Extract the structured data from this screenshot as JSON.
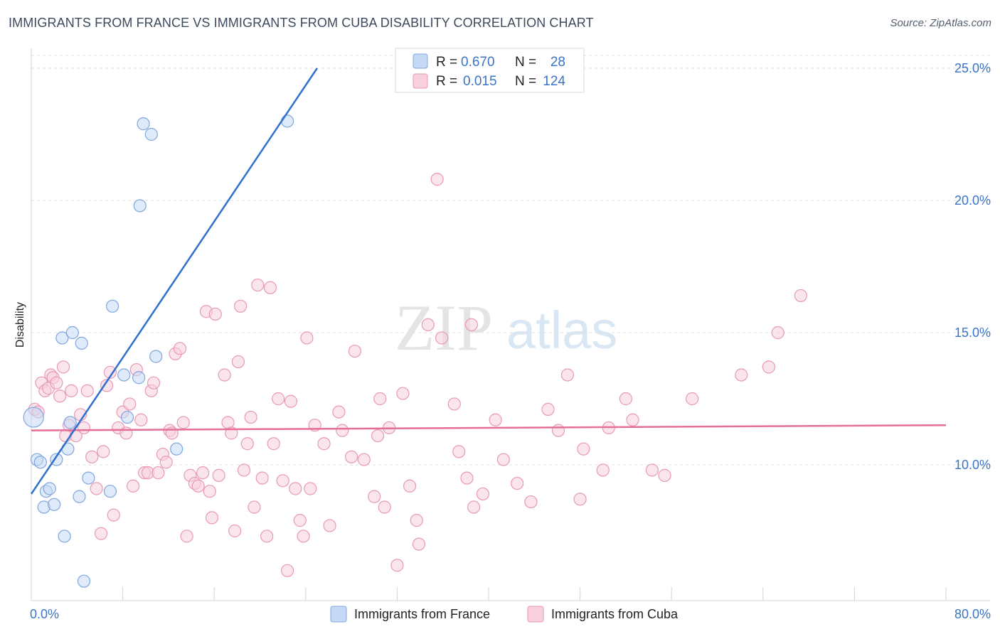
{
  "header": {
    "title": "IMMIGRANTS FROM FRANCE VS IMMIGRANTS FROM CUBA DISABILITY CORRELATION CHART",
    "source": "Source: ZipAtlas.com"
  },
  "watermark": {
    "zip": "ZIP",
    "atlas": "atlas"
  },
  "colors": {
    "france_fill": "#c5d9f5",
    "france_stroke": "#7fa6dc",
    "france_line": "#2f6fd0",
    "cuba_fill": "#f8cfdc",
    "cuba_stroke": "#e899b3",
    "cuba_line": "#e66f96",
    "tick_text": "#3b74c4",
    "grid": "#dde1e6"
  },
  "legend_top": {
    "rows": [
      {
        "r_label": "R =",
        "r_value": "0.670",
        "n_label": "N =",
        "n_value": "28"
      },
      {
        "r_label": "R =",
        "r_value": "0.015",
        "n_label": "N =",
        "n_value": "124"
      }
    ]
  },
  "chart_data": {
    "type": "scatter",
    "title": "IMMIGRANTS FROM FRANCE VS IMMIGRANTS FROM CUBA DISABILITY CORRELATION CHART",
    "xlabel": "",
    "ylabel": "Disability",
    "xlim": [
      0,
      80
    ],
    "ylim": [
      5,
      25.5
    ],
    "x_tick_labels": [
      {
        "value": 0,
        "label": "0.0%"
      },
      {
        "value": 80,
        "label": "80.0%"
      }
    ],
    "y_tick_labels": [
      {
        "value": 10,
        "label": "10.0%"
      },
      {
        "value": 15,
        "label": "15.0%"
      },
      {
        "value": 20,
        "label": "20.0%"
      },
      {
        "value": 25,
        "label": "25.0%"
      }
    ],
    "x_minor_ticks": [
      8,
      16,
      24,
      32,
      40,
      48,
      56,
      64,
      72,
      80
    ],
    "grid": true,
    "legend_position": "bottom",
    "series": [
      {
        "name": "Immigrants from France",
        "r": 0.67,
        "n": 28,
        "trend": {
          "x0": 0,
          "y0": 8.9,
          "x1": 25,
          "y1": 25.0
        },
        "points": [
          [
            0.2,
            11.8
          ],
          [
            0.5,
            10.2
          ],
          [
            0.8,
            10.1
          ],
          [
            1.1,
            8.4
          ],
          [
            1.3,
            9.0
          ],
          [
            1.6,
            9.1
          ],
          [
            2.0,
            8.5
          ],
          [
            2.2,
            10.2
          ],
          [
            2.7,
            14.8
          ],
          [
            2.9,
            7.3
          ],
          [
            3.2,
            10.6
          ],
          [
            3.4,
            11.6
          ],
          [
            3.6,
            15.0
          ],
          [
            4.2,
            8.8
          ],
          [
            4.4,
            14.6
          ],
          [
            4.6,
            5.6
          ],
          [
            5.0,
            9.5
          ],
          [
            6.9,
            9.0
          ],
          [
            7.1,
            16.0
          ],
          [
            8.1,
            13.4
          ],
          [
            8.4,
            11.8
          ],
          [
            9.4,
            13.3
          ],
          [
            9.5,
            19.8
          ],
          [
            9.8,
            22.9
          ],
          [
            10.5,
            22.5
          ],
          [
            10.9,
            14.1
          ],
          [
            12.7,
            10.6
          ],
          [
            22.4,
            23.0
          ]
        ]
      },
      {
        "name": "Immigrants from Cuba",
        "r": 0.015,
        "n": 124,
        "trend": {
          "x0": 0,
          "y0": 11.3,
          "x1": 80,
          "y1": 11.5
        },
        "points": [
          [
            0.3,
            12.1
          ],
          [
            0.6,
            12.0
          ],
          [
            0.9,
            13.1
          ],
          [
            1.2,
            12.8
          ],
          [
            1.5,
            12.9
          ],
          [
            1.7,
            13.4
          ],
          [
            1.9,
            13.3
          ],
          [
            2.2,
            13.1
          ],
          [
            2.5,
            12.6
          ],
          [
            2.8,
            13.7
          ],
          [
            3.0,
            11.1
          ],
          [
            3.3,
            11.5
          ],
          [
            3.5,
            12.8
          ],
          [
            3.9,
            11.1
          ],
          [
            4.3,
            11.9
          ],
          [
            4.6,
            11.4
          ],
          [
            4.9,
            12.8
          ],
          [
            5.3,
            10.3
          ],
          [
            5.7,
            9.1
          ],
          [
            6.1,
            7.4
          ],
          [
            6.3,
            10.5
          ],
          [
            6.6,
            13.0
          ],
          [
            6.9,
            13.5
          ],
          [
            7.2,
            8.1
          ],
          [
            7.6,
            11.4
          ],
          [
            8.0,
            12.0
          ],
          [
            8.3,
            11.2
          ],
          [
            8.6,
            12.3
          ],
          [
            8.9,
            9.2
          ],
          [
            9.2,
            13.6
          ],
          [
            9.6,
            11.7
          ],
          [
            9.9,
            9.7
          ],
          [
            10.2,
            9.7
          ],
          [
            10.5,
            12.8
          ],
          [
            10.7,
            13.1
          ],
          [
            11.1,
            9.7
          ],
          [
            11.5,
            10.4
          ],
          [
            11.8,
            10.1
          ],
          [
            12.1,
            11.3
          ],
          [
            12.3,
            11.2
          ],
          [
            12.6,
            14.2
          ],
          [
            13.0,
            14.4
          ],
          [
            13.3,
            11.6
          ],
          [
            13.6,
            7.3
          ],
          [
            13.9,
            9.6
          ],
          [
            14.3,
            9.3
          ],
          [
            14.6,
            9.2
          ],
          [
            15.0,
            9.7
          ],
          [
            15.3,
            15.8
          ],
          [
            15.6,
            9.0
          ],
          [
            15.8,
            8.0
          ],
          [
            16.1,
            15.7
          ],
          [
            16.4,
            9.6
          ],
          [
            16.9,
            13.4
          ],
          [
            17.2,
            11.6
          ],
          [
            17.5,
            11.2
          ],
          [
            17.8,
            7.5
          ],
          [
            18.1,
            13.9
          ],
          [
            18.3,
            16.0
          ],
          [
            18.6,
            9.8
          ],
          [
            18.9,
            10.8
          ],
          [
            19.2,
            11.8
          ],
          [
            19.5,
            8.4
          ],
          [
            19.8,
            16.8
          ],
          [
            20.2,
            9.5
          ],
          [
            20.6,
            7.3
          ],
          [
            20.9,
            16.7
          ],
          [
            21.2,
            10.8
          ],
          [
            21.6,
            12.5
          ],
          [
            22.0,
            9.4
          ],
          [
            22.4,
            6.0
          ],
          [
            22.7,
            12.4
          ],
          [
            23.1,
            9.1
          ],
          [
            23.5,
            7.9
          ],
          [
            23.8,
            7.3
          ],
          [
            24.1,
            14.8
          ],
          [
            24.4,
            9.1
          ],
          [
            24.8,
            11.5
          ],
          [
            25.6,
            10.8
          ],
          [
            26.1,
            7.7
          ],
          [
            26.9,
            12.0
          ],
          [
            27.2,
            11.3
          ],
          [
            28.0,
            10.3
          ],
          [
            28.3,
            14.3
          ],
          [
            29.1,
            10.2
          ],
          [
            30.0,
            8.8
          ],
          [
            30.3,
            11.1
          ],
          [
            30.5,
            12.5
          ],
          [
            30.9,
            8.4
          ],
          [
            31.3,
            11.4
          ],
          [
            32.0,
            6.2
          ],
          [
            32.5,
            12.7
          ],
          [
            33.1,
            9.2
          ],
          [
            33.7,
            7.9
          ],
          [
            33.9,
            7.0
          ],
          [
            34.7,
            15.3
          ],
          [
            35.5,
            20.8
          ],
          [
            35.9,
            14.8
          ],
          [
            37.0,
            12.3
          ],
          [
            37.4,
            10.5
          ],
          [
            38.1,
            9.5
          ],
          [
            38.5,
            15.3
          ],
          [
            38.7,
            8.4
          ],
          [
            39.5,
            8.9
          ],
          [
            40.6,
            11.7
          ],
          [
            41.3,
            10.2
          ],
          [
            42.5,
            9.3
          ],
          [
            43.7,
            8.6
          ],
          [
            45.2,
            12.1
          ],
          [
            46.1,
            11.3
          ],
          [
            46.9,
            13.4
          ],
          [
            48.0,
            8.7
          ],
          [
            48.3,
            10.6
          ],
          [
            50.0,
            9.8
          ],
          [
            50.5,
            11.4
          ],
          [
            52.0,
            12.5
          ],
          [
            52.6,
            11.7
          ],
          [
            54.3,
            9.8
          ],
          [
            55.4,
            9.6
          ],
          [
            57.8,
            12.5
          ],
          [
            62.1,
            13.4
          ],
          [
            64.5,
            13.7
          ],
          [
            65.3,
            15.0
          ],
          [
            67.3,
            16.4
          ]
        ]
      }
    ]
  },
  "legend_bottom": {
    "items": [
      "Immigrants from France",
      "Immigrants from Cuba"
    ]
  }
}
